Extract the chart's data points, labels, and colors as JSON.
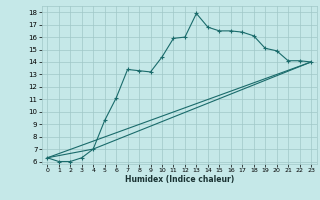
{
  "xlabel": "Humidex (Indice chaleur)",
  "xlim": [
    -0.5,
    23.5
  ],
  "ylim": [
    5.8,
    18.5
  ],
  "yticks": [
    6,
    7,
    8,
    9,
    10,
    11,
    12,
    13,
    14,
    15,
    16,
    17,
    18
  ],
  "xticks": [
    0,
    1,
    2,
    3,
    4,
    5,
    6,
    7,
    8,
    9,
    10,
    11,
    12,
    13,
    14,
    15,
    16,
    17,
    18,
    19,
    20,
    21,
    22,
    23
  ],
  "bg_color": "#c5e8e8",
  "grid_color": "#a0c8c8",
  "line_color": "#1a6b6b",
  "curve1_x": [
    0,
    1,
    2,
    3,
    4,
    5,
    6,
    7,
    8,
    9,
    10,
    11,
    12,
    13,
    14,
    15,
    16,
    17,
    18,
    19,
    20,
    21,
    22,
    23
  ],
  "curve1_y": [
    6.3,
    6.0,
    6.0,
    6.3,
    7.0,
    9.3,
    11.1,
    13.4,
    13.3,
    13.2,
    14.4,
    15.9,
    16.0,
    17.9,
    16.8,
    16.5,
    16.5,
    16.4,
    16.1,
    15.1,
    14.9,
    14.1,
    14.1,
    14.0
  ],
  "curve2_x": [
    0,
    23
  ],
  "curve2_y": [
    6.3,
    14.0
  ],
  "curve3_x": [
    0,
    4,
    23
  ],
  "curve3_y": [
    6.3,
    7.0,
    14.0
  ]
}
